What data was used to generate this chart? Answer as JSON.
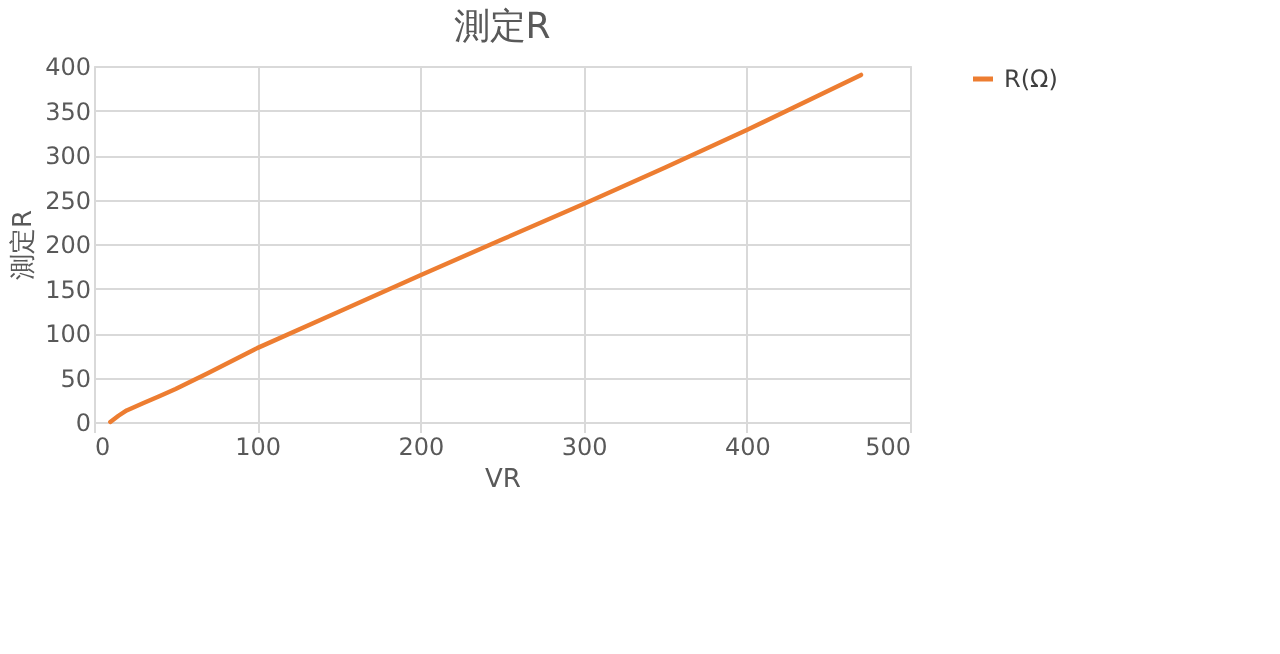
{
  "chart_data": {
    "type": "line",
    "title": "測定R",
    "xlabel": "VR",
    "ylabel": "測定R",
    "x": [
      10,
      15,
      20,
      30,
      40,
      50,
      60,
      70,
      100,
      150,
      200,
      250,
      300,
      350,
      400,
      470
    ],
    "series": [
      {
        "name": "R(Ω)",
        "color": "#ed7d31",
        "values": [
          0,
          7,
          13,
          21,
          29,
          37,
          46,
          55,
          83,
          124,
          165,
          205,
          245,
          286,
          328,
          390
        ]
      }
    ],
    "xlim": [
      0,
      500
    ],
    "xticks": [
      0,
      100,
      200,
      300,
      400,
      500
    ],
    "ylim": [
      0,
      400
    ],
    "yticks": [
      0,
      50,
      100,
      150,
      200,
      250,
      300,
      350,
      400
    ],
    "grid": true,
    "legend": "right",
    "marker": "none",
    "line_style": "solid"
  }
}
